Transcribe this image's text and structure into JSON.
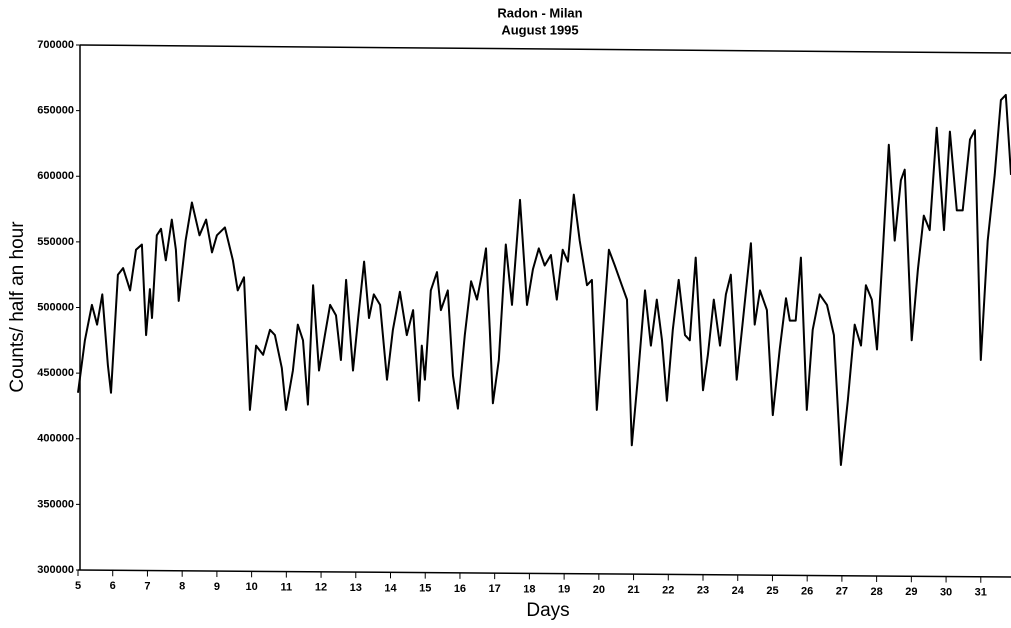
{
  "chart_data": {
    "type": "line",
    "title": "Radon - Milan",
    "subtitle": "August 1995",
    "x_label": "Days",
    "y_label": "Counts/ half an hour",
    "color": "#000000",
    "grid": false,
    "xlim": [
      5,
      31.87
    ],
    "ylim": [
      300000,
      700000
    ],
    "xticks": [
      5,
      6,
      7,
      8,
      9,
      10,
      11,
      12,
      13,
      14,
      15,
      16,
      17,
      18,
      19,
      20,
      21,
      22,
      23,
      24,
      25,
      26,
      27,
      28,
      29,
      30,
      31
    ],
    "yticks": [
      300000,
      350000,
      400000,
      450000,
      500000,
      550000,
      600000,
      650000,
      700000
    ],
    "x": [
      5,
      5.2,
      5.4,
      5.55,
      5.7,
      5.86,
      5.95,
      6.15,
      6.3,
      6.5,
      6.67,
      6.84,
      6.96,
      7.07,
      7.13,
      7.27,
      7.39,
      7.53,
      7.7,
      7.82,
      7.9,
      8.1,
      8.28,
      8.5,
      8.69,
      8.86,
      9,
      9.23,
      9.46,
      9.6,
      9.78,
      9.95,
      10.13,
      10.33,
      10.53,
      10.67,
      10.87,
      10.99,
      11.19,
      11.33,
      11.48,
      11.62,
      11.77,
      11.94,
      12.11,
      12.26,
      12.43,
      12.57,
      12.72,
      12.92,
      13.06,
      13.24,
      13.38,
      13.52,
      13.7,
      13.9,
      14.07,
      14.27,
      14.47,
      14.65,
      14.82,
      14.9,
      14.99,
      15.16,
      15.34,
      15.45,
      15.65,
      15.8,
      15.94,
      16.14,
      16.32,
      16.49,
      16.63,
      16.75,
      16.86,
      16.95,
      17.12,
      17.32,
      17.5,
      17.73,
      17.93,
      18.1,
      18.27,
      18.44,
      18.62,
      18.79,
      18.96,
      19.11,
      19.28,
      19.45,
      19.66,
      19.8,
      19.94,
      20.12,
      20.29,
      20.46,
      20.66,
      20.81,
      20.95,
      21.12,
      21.33,
      21.5,
      21.67,
      21.82,
      21.96,
      22.13,
      22.3,
      22.48,
      22.62,
      22.79,
      23,
      23.14,
      23.31,
      23.49,
      23.66,
      23.8,
      23.97,
      24.15,
      24.38,
      24.49,
      24.64,
      24.84,
      25.01,
      25.21,
      25.39,
      25.5,
      25.67,
      25.82,
      25.99,
      26.16,
      26.36,
      26.57,
      26.77,
      26.97,
      27.17,
      27.37,
      27.55,
      27.69,
      27.86,
      28.01,
      28.18,
      28.35,
      28.52,
      28.7,
      28.81,
      29.01,
      29.19,
      29.36,
      29.53,
      29.73,
      29.94,
      30.11,
      30.31,
      30.48,
      30.69,
      30.83,
      31,
      31.2,
      31.4,
      31.58,
      31.72,
      31.87
    ],
    "values": [
      435000,
      475000,
      502000,
      487000,
      510000,
      456000,
      435000,
      525000,
      530000,
      513000,
      544000,
      548000,
      479000,
      514000,
      492000,
      555000,
      560000,
      536000,
      567000,
      544000,
      505000,
      551000,
      580000,
      555000,
      567000,
      542000,
      555000,
      561000,
      536000,
      513000,
      523000,
      422000,
      471000,
      464000,
      483000,
      479000,
      454000,
      422000,
      452000,
      487000,
      475000,
      426000,
      517000,
      452000,
      479000,
      502000,
      494000,
      460000,
      521000,
      452000,
      490000,
      535000,
      492000,
      510000,
      502000,
      445000,
      483000,
      512000,
      479000,
      498000,
      429000,
      471000,
      445000,
      513000,
      527000,
      498000,
      513000,
      448000,
      423000,
      479000,
      520000,
      506000,
      525000,
      545000,
      483000,
      427000,
      460000,
      548000,
      502000,
      582000,
      502000,
      529000,
      545000,
      532000,
      540000,
      506000,
      544000,
      535000,
      586000,
      551000,
      517000,
      521000,
      422000,
      483000,
      544000,
      532000,
      517000,
      506000,
      395000,
      445000,
      513000,
      471000,
      506000,
      475000,
      429000,
      483000,
      521000,
      479000,
      475000,
      538000,
      437000,
      464000,
      506000,
      471000,
      510000,
      525000,
      445000,
      490000,
      549000,
      487000,
      513000,
      498000,
      418000,
      468000,
      507000,
      490000,
      490000,
      538000,
      422000,
      483000,
      510000,
      502000,
      479000,
      380000,
      429000,
      487000,
      471000,
      517000,
      506000,
      468000,
      544000,
      624000,
      551000,
      597000,
      605000,
      475000,
      529000,
      570000,
      559000,
      637000,
      559000,
      634000,
      574000,
      574000,
      628000,
      635000,
      460000,
      551000,
      601000,
      658000,
      662000,
      601000
    ]
  }
}
